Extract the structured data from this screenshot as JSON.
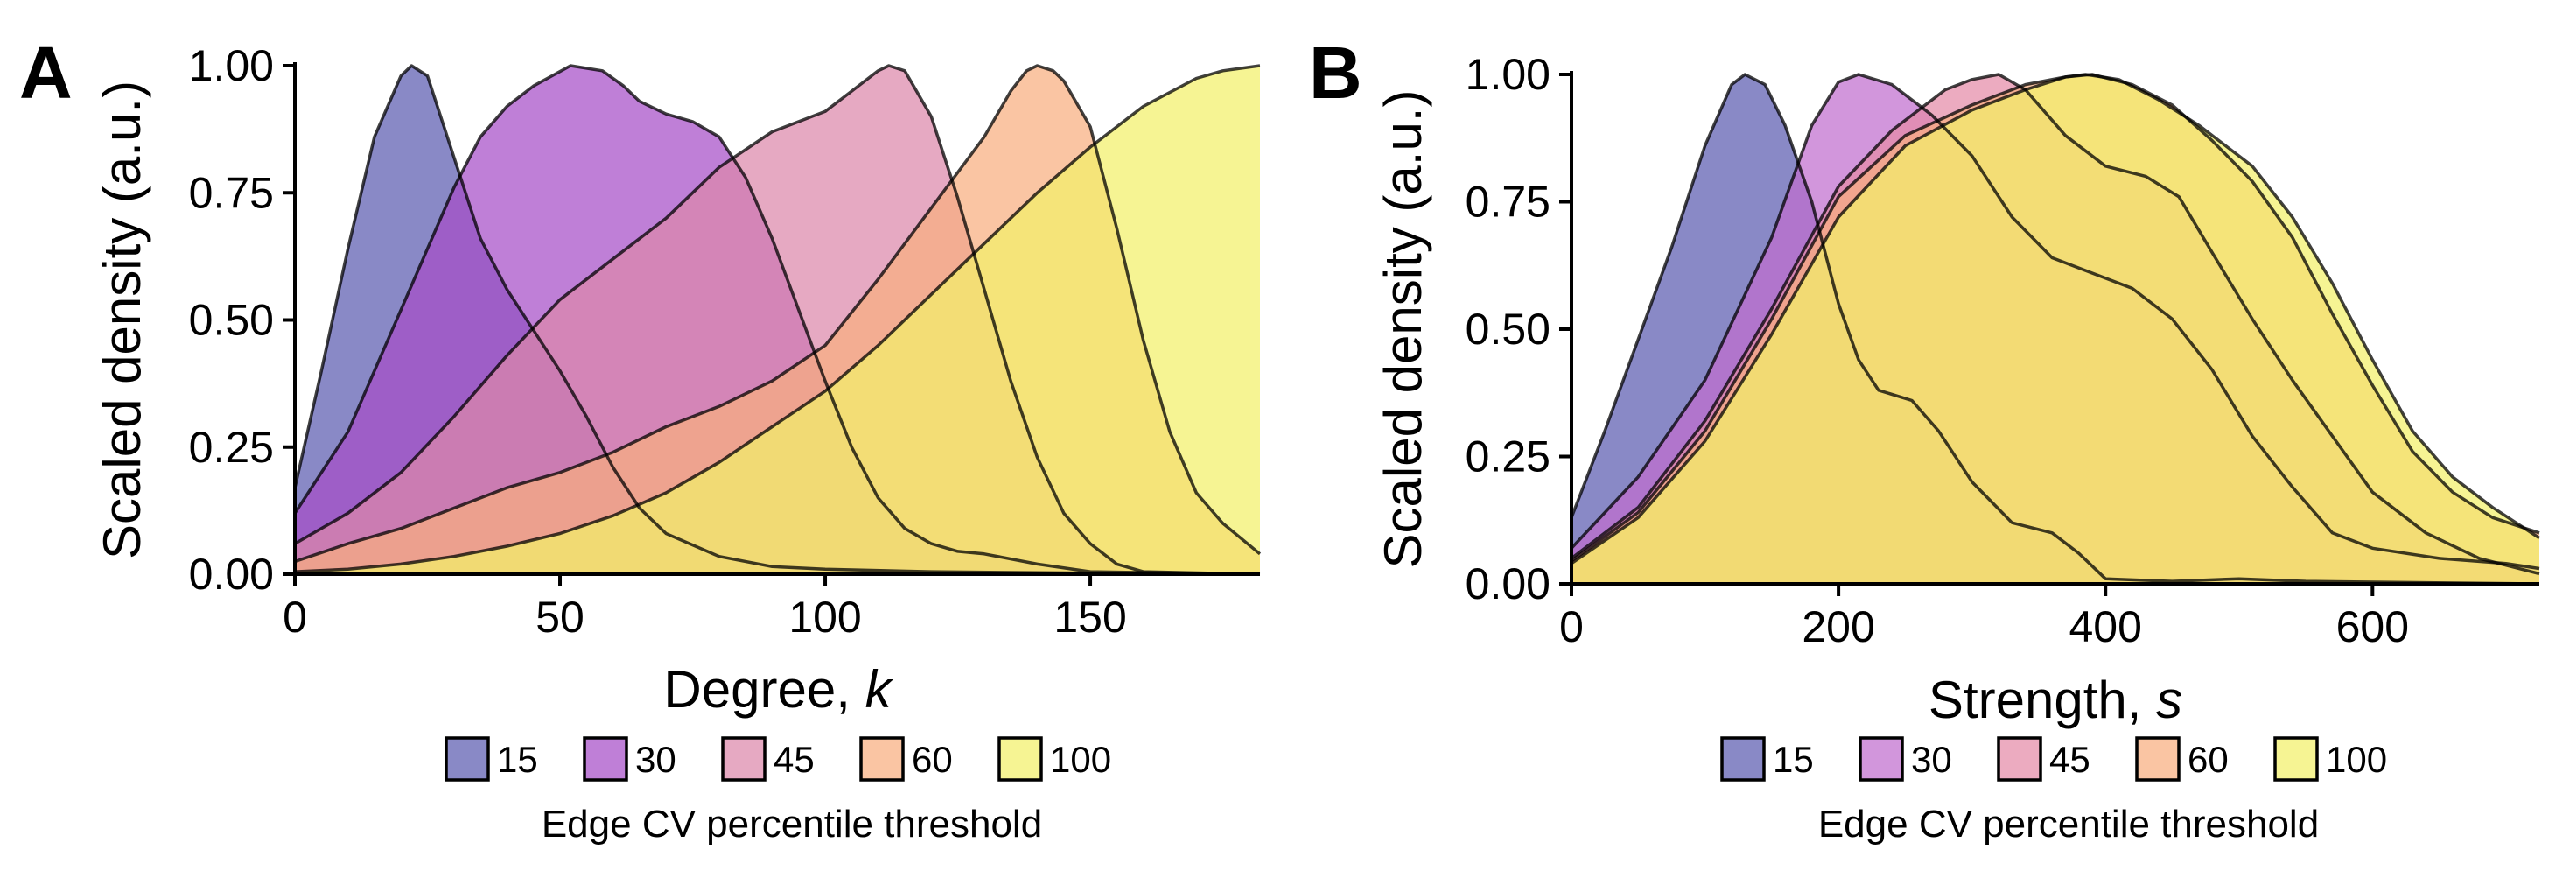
{
  "chart_data": [
    {
      "type": "area",
      "panel": "A",
      "xlabel": "Degree, ",
      "xlabel_var": "k",
      "ylabel": "Scaled density (a.u.)",
      "xlim": [
        0,
        182
      ],
      "ylim": [
        0,
        1
      ],
      "x_ticks": [
        0,
        50,
        100,
        150
      ],
      "x_tick_labels": [
        "0",
        "50",
        "100",
        "150"
      ],
      "y_ticks": [
        0,
        0.25,
        0.5,
        0.75,
        1
      ],
      "y_tick_labels": [
        "0.00",
        "0.25",
        "0.50",
        "0.75",
        "1.00"
      ],
      "grid": false,
      "legend_position": "bottom",
      "legend_title": "Edge CV percentile threshold",
      "series": [
        {
          "name": "15",
          "color": "#5b5bb0",
          "points": [
            [
              0,
              0.17
            ],
            [
              5,
              0.4
            ],
            [
              10,
              0.64
            ],
            [
              15,
              0.86
            ],
            [
              20,
              0.98
            ],
            [
              22,
              1.0
            ],
            [
              25,
              0.98
            ],
            [
              30,
              0.82
            ],
            [
              35,
              0.66
            ],
            [
              40,
              0.56
            ],
            [
              45,
              0.48
            ],
            [
              50,
              0.4
            ],
            [
              55,
              0.31
            ],
            [
              60,
              0.21
            ],
            [
              65,
              0.13
            ],
            [
              70,
              0.08
            ],
            [
              80,
              0.035
            ],
            [
              90,
              0.015
            ],
            [
              100,
              0.01
            ],
            [
              120,
              0.005
            ],
            [
              150,
              0.002
            ],
            [
              182,
              0.0
            ]
          ]
        },
        {
          "name": "30",
          "color": "#a64dc7",
          "points": [
            [
              0,
              0.12
            ],
            [
              10,
              0.28
            ],
            [
              20,
              0.52
            ],
            [
              25,
              0.64
            ],
            [
              30,
              0.76
            ],
            [
              35,
              0.86
            ],
            [
              40,
              0.92
            ],
            [
              45,
              0.96
            ],
            [
              52,
              1.0
            ],
            [
              58,
              0.99
            ],
            [
              62,
              0.96
            ],
            [
              65,
              0.93
            ],
            [
              70,
              0.905
            ],
            [
              75,
              0.89
            ],
            [
              80,
              0.86
            ],
            [
              85,
              0.78
            ],
            [
              90,
              0.66
            ],
            [
              95,
              0.52
            ],
            [
              100,
              0.38
            ],
            [
              105,
              0.25
            ],
            [
              110,
              0.15
            ],
            [
              115,
              0.09
            ],
            [
              120,
              0.06
            ],
            [
              125,
              0.045
            ],
            [
              130,
              0.04
            ],
            [
              140,
              0.02
            ],
            [
              150,
              0.005
            ],
            [
              182,
              0.0
            ]
          ]
        },
        {
          "name": "45",
          "color": "#dd88aa",
          "points": [
            [
              0,
              0.06
            ],
            [
              10,
              0.12
            ],
            [
              20,
              0.2
            ],
            [
              30,
              0.31
            ],
            [
              40,
              0.43
            ],
            [
              50,
              0.54
            ],
            [
              60,
              0.62
            ],
            [
              70,
              0.7
            ],
            [
              80,
              0.8
            ],
            [
              90,
              0.87
            ],
            [
              100,
              0.91
            ],
            [
              105,
              0.95
            ],
            [
              110,
              0.99
            ],
            [
              112,
              1.0
            ],
            [
              115,
              0.99
            ],
            [
              120,
              0.9
            ],
            [
              125,
              0.74
            ],
            [
              130,
              0.56
            ],
            [
              135,
              0.38
            ],
            [
              140,
              0.23
            ],
            [
              145,
              0.12
            ],
            [
              150,
              0.06
            ],
            [
              155,
              0.02
            ],
            [
              160,
              0.005
            ],
            [
              182,
              0.0
            ]
          ]
        },
        {
          "name": "60",
          "color": "#f8ae80",
          "points": [
            [
              0,
              0.025
            ],
            [
              10,
              0.06
            ],
            [
              20,
              0.09
            ],
            [
              30,
              0.13
            ],
            [
              40,
              0.17
            ],
            [
              50,
              0.2
            ],
            [
              60,
              0.24
            ],
            [
              70,
              0.29
            ],
            [
              80,
              0.33
            ],
            [
              90,
              0.38
            ],
            [
              100,
              0.45
            ],
            [
              110,
              0.58
            ],
            [
              120,
              0.72
            ],
            [
              125,
              0.79
            ],
            [
              130,
              0.86
            ],
            [
              135,
              0.95
            ],
            [
              138,
              0.99
            ],
            [
              140,
              1.0
            ],
            [
              143,
              0.99
            ],
            [
              145,
              0.97
            ],
            [
              150,
              0.88
            ],
            [
              155,
              0.68
            ],
            [
              160,
              0.46
            ],
            [
              165,
              0.28
            ],
            [
              170,
              0.16
            ],
            [
              175,
              0.1
            ],
            [
              182,
              0.04
            ]
          ]
        },
        {
          "name": "100",
          "color": "#f2f06a",
          "points": [
            [
              0,
              0.005
            ],
            [
              10,
              0.01
            ],
            [
              20,
              0.02
            ],
            [
              30,
              0.035
            ],
            [
              40,
              0.055
            ],
            [
              50,
              0.08
            ],
            [
              60,
              0.115
            ],
            [
              70,
              0.16
            ],
            [
              80,
              0.22
            ],
            [
              90,
              0.29
            ],
            [
              100,
              0.36
            ],
            [
              110,
              0.45
            ],
            [
              120,
              0.55
            ],
            [
              130,
              0.65
            ],
            [
              140,
              0.75
            ],
            [
              150,
              0.84
            ],
            [
              160,
              0.92
            ],
            [
              170,
              0.975
            ],
            [
              175,
              0.99
            ],
            [
              182,
              1.0
            ]
          ]
        }
      ]
    },
    {
      "type": "area",
      "panel": "B",
      "xlabel": "Strength, ",
      "xlabel_var": "s",
      "ylabel": "Scaled density (a.u.)",
      "xlim": [
        0,
        725
      ],
      "ylim": [
        0,
        1
      ],
      "x_ticks": [
        0,
        200,
        400,
        600
      ],
      "x_tick_labels": [
        "0",
        "200",
        "400",
        "600"
      ],
      "y_ticks": [
        0,
        0.25,
        0.5,
        0.75,
        1
      ],
      "y_tick_labels": [
        "0.00",
        "0.25",
        "0.50",
        "0.75",
        "1.00"
      ],
      "grid": false,
      "legend_position": "bottom",
      "legend_title": "Edge CV percentile threshold",
      "series": [
        {
          "name": "15",
          "color": "#5b5bb0",
          "points": [
            [
              0,
              0.13
            ],
            [
              25,
              0.3
            ],
            [
              50,
              0.48
            ],
            [
              75,
              0.66
            ],
            [
              100,
              0.86
            ],
            [
              120,
              0.98
            ],
            [
              130,
              1.0
            ],
            [
              145,
              0.98
            ],
            [
              160,
              0.9
            ],
            [
              180,
              0.75
            ],
            [
              200,
              0.55
            ],
            [
              215,
              0.44
            ],
            [
              230,
              0.38
            ],
            [
              255,
              0.36
            ],
            [
              275,
              0.3
            ],
            [
              300,
              0.2
            ],
            [
              330,
              0.12
            ],
            [
              360,
              0.1
            ],
            [
              380,
              0.06
            ],
            [
              400,
              0.01
            ],
            [
              450,
              0.005
            ],
            [
              500,
              0.01
            ],
            [
              550,
              0.005
            ],
            [
              725,
              0.0
            ]
          ]
        },
        {
          "name": "30",
          "color": "#c16ecf",
          "points": [
            [
              0,
              0.07
            ],
            [
              50,
              0.21
            ],
            [
              100,
              0.4
            ],
            [
              150,
              0.68
            ],
            [
              180,
              0.9
            ],
            [
              200,
              0.985
            ],
            [
              215,
              1.0
            ],
            [
              240,
              0.98
            ],
            [
              270,
              0.92
            ],
            [
              300,
              0.84
            ],
            [
              330,
              0.72
            ],
            [
              360,
              0.64
            ],
            [
              390,
              0.61
            ],
            [
              420,
              0.58
            ],
            [
              450,
              0.52
            ],
            [
              480,
              0.42
            ],
            [
              510,
              0.29
            ],
            [
              540,
              0.19
            ],
            [
              570,
              0.1
            ],
            [
              600,
              0.07
            ],
            [
              650,
              0.05
            ],
            [
              700,
              0.04
            ],
            [
              725,
              0.03
            ]
          ]
        },
        {
          "name": "45",
          "color": "#e48aa8",
          "points": [
            [
              0,
              0.05
            ],
            [
              50,
              0.15
            ],
            [
              100,
              0.32
            ],
            [
              150,
              0.54
            ],
            [
              200,
              0.78
            ],
            [
              240,
              0.89
            ],
            [
              280,
              0.97
            ],
            [
              300,
              0.99
            ],
            [
              320,
              1.0
            ],
            [
              340,
              0.97
            ],
            [
              370,
              0.88
            ],
            [
              400,
              0.82
            ],
            [
              430,
              0.8
            ],
            [
              455,
              0.76
            ],
            [
              480,
              0.65
            ],
            [
              510,
              0.52
            ],
            [
              540,
              0.4
            ],
            [
              570,
              0.29
            ],
            [
              600,
              0.18
            ],
            [
              640,
              0.1
            ],
            [
              680,
              0.05
            ],
            [
              725,
              0.02
            ]
          ]
        },
        {
          "name": "60",
          "color": "#f8ae80",
          "points": [
            [
              0,
              0.045
            ],
            [
              50,
              0.14
            ],
            [
              100,
              0.3
            ],
            [
              150,
              0.52
            ],
            [
              200,
              0.76
            ],
            [
              250,
              0.88
            ],
            [
              300,
              0.94
            ],
            [
              340,
              0.98
            ],
            [
              370,
              0.995
            ],
            [
              390,
              1.0
            ],
            [
              420,
              0.98
            ],
            [
              450,
              0.94
            ],
            [
              480,
              0.87
            ],
            [
              510,
              0.79
            ],
            [
              540,
              0.68
            ],
            [
              570,
              0.53
            ],
            [
              600,
              0.39
            ],
            [
              630,
              0.26
            ],
            [
              660,
              0.18
            ],
            [
              690,
              0.13
            ],
            [
              725,
              0.1
            ]
          ]
        },
        {
          "name": "100",
          "color": "#f2f06a",
          "points": [
            [
              0,
              0.04
            ],
            [
              50,
              0.13
            ],
            [
              100,
              0.28
            ],
            [
              150,
              0.49
            ],
            [
              200,
              0.72
            ],
            [
              250,
              0.86
            ],
            [
              300,
              0.93
            ],
            [
              340,
              0.97
            ],
            [
              370,
              0.995
            ],
            [
              385,
              1.0
            ],
            [
              410,
              0.99
            ],
            [
              440,
              0.95
            ],
            [
              470,
              0.9
            ],
            [
              510,
              0.82
            ],
            [
              540,
              0.72
            ],
            [
              570,
              0.59
            ],
            [
              600,
              0.44
            ],
            [
              630,
              0.3
            ],
            [
              660,
              0.21
            ],
            [
              690,
              0.15
            ],
            [
              725,
              0.09
            ]
          ]
        }
      ]
    }
  ]
}
